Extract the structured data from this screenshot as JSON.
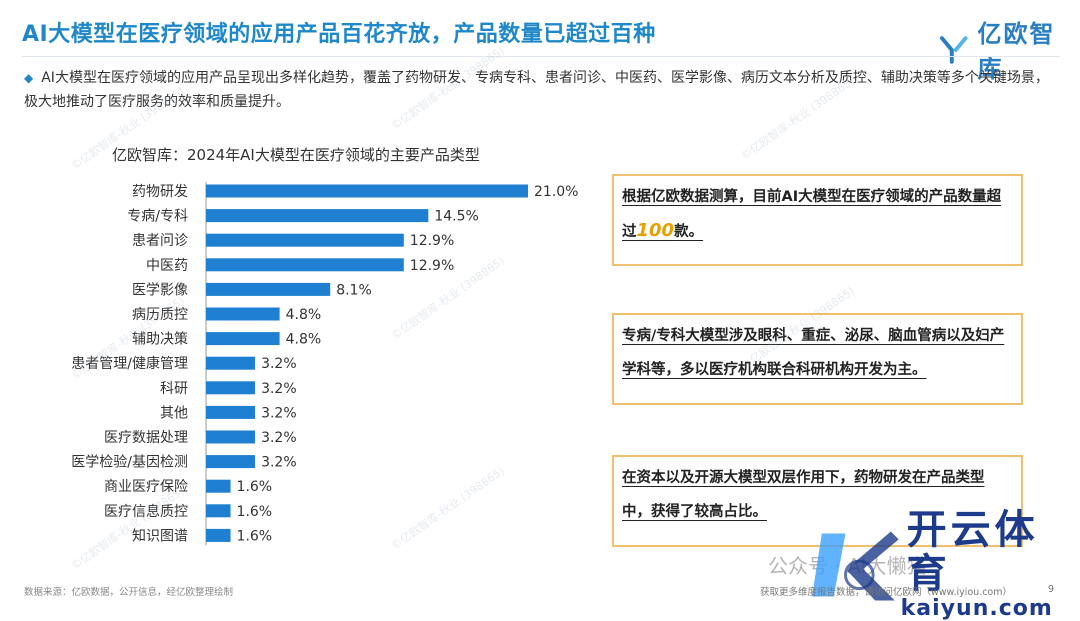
{
  "header": {
    "title": "AI大模型在医疗领域的应用产品百花齐放，产品数量已超过百种",
    "logo_text": "亿欧智库"
  },
  "intro": {
    "text": "AI大模型在医疗领域的应用产品呈现出多样化趋势，覆盖了药物研发、专病专科、患者问诊、中医药、医学影像、病历文本分析及质控、辅助决策等多个关键场景，极大地推动了医疗服务的效率和质量提升。"
  },
  "chart_data": {
    "type": "bar",
    "orientation": "horizontal",
    "title": "亿欧智库：2024年AI大模型在医疗领域的主要产品类型",
    "categories": [
      "药物研发",
      "专病/专科",
      "患者问诊",
      "中医药",
      "医学影像",
      "病历质控",
      "辅助决策",
      "患者管理/健康管理",
      "科研",
      "其他",
      "医疗数据处理",
      "医学检验/基因检测",
      "商业医疗保险",
      "医疗信息质控",
      "知识图谱"
    ],
    "values": [
      21.0,
      14.5,
      12.9,
      12.9,
      8.1,
      4.8,
      4.8,
      3.2,
      3.2,
      3.2,
      3.2,
      3.2,
      1.6,
      1.6,
      1.6
    ],
    "value_labels": [
      "21.0%",
      "14.5%",
      "12.9%",
      "12.9%",
      "8.1%",
      "4.8%",
      "4.8%",
      "3.2%",
      "3.2%",
      "3.2%",
      "3.2%",
      "3.2%",
      "1.6%",
      "1.6%",
      "1.6%"
    ],
    "xlim": [
      0,
      21.0
    ],
    "color": "#1f7fd0",
    "grid": false
  },
  "callouts": {
    "box1_pre": "根据亿欧数据测算，目前AI大模型在医疗领域的产品数量超过",
    "box1_num": "100",
    "box1_post": "款。",
    "box2": "专病/专科大模型涉及眼科、重症、泌尿、脑血管病以及妇产学科等，多以医疗机构联合科研机构开发为主。",
    "box3": "在资本以及开源大模型双层作用下，药物研发在产品类型中，获得了较高占比。"
  },
  "footer": {
    "source": "数据来源：亿欧数据，公开信息，经亿欧整理绘制",
    "note": "获取更多维度报告数据，请访问亿欧网（www.iyiou.com）",
    "page": "9"
  },
  "watermarks": {
    "text": "©亿欧智库-秋业 (398865)",
    "wechat": "公众号 · AI大懒猫"
  },
  "brand": {
    "cn": "开云体育",
    "en": "kaiyun.com"
  },
  "colors": {
    "title": "#1f88c9",
    "bar": "#1f7fd0",
    "box_border": "#f0c070",
    "highlight": "#e8a000",
    "brand": "#1d3b8a"
  }
}
